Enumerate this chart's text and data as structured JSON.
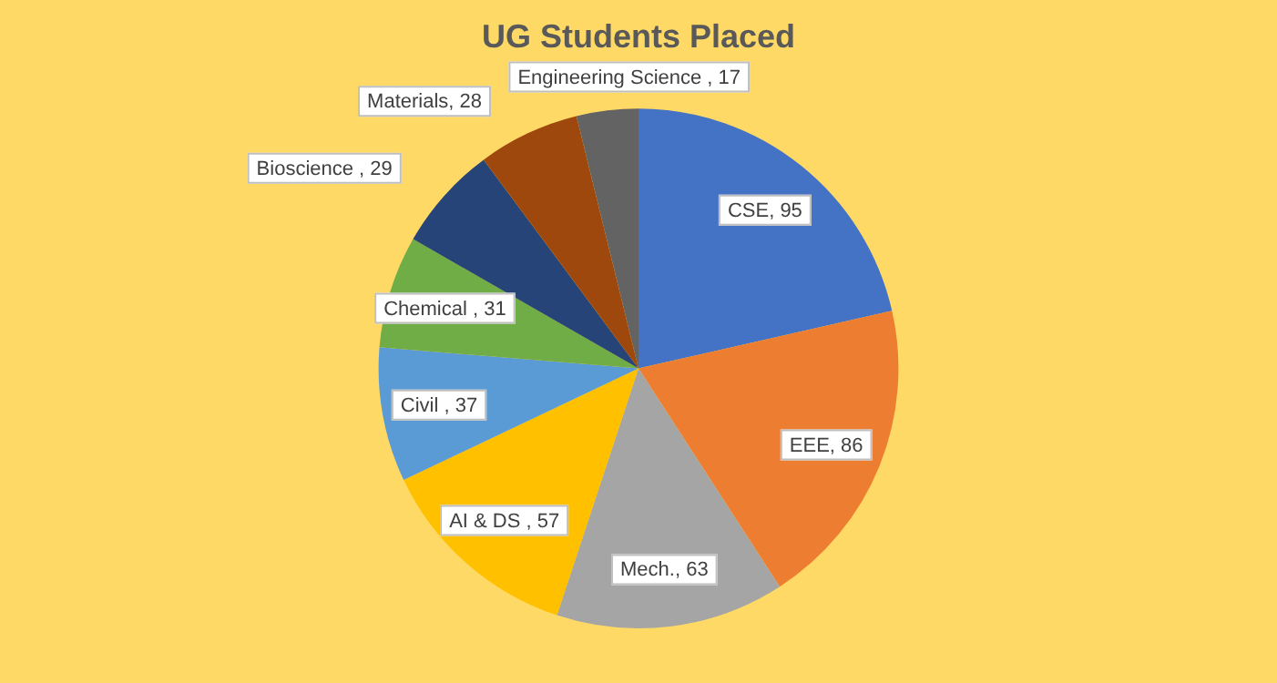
{
  "chart_data": {
    "type": "pie",
    "title": "UG Students Placed",
    "categories": [
      "CSE",
      "EEE",
      "Mech.",
      "AI & DS ",
      "Civil ",
      "Chemical ",
      "Bioscience ",
      "Materials",
      "Engineering Science "
    ],
    "values": [
      95,
      86,
      63,
      57,
      37,
      31,
      29,
      28,
      17
    ],
    "value_labels": [
      ", 95",
      ", 86",
      ", 63",
      ", 57",
      ", 37",
      ", 31",
      ", 29",
      ", 28",
      ", 17"
    ],
    "colors": [
      "#4472c4",
      "#ed7d31",
      "#a5a5a5",
      "#ffc000",
      "#5b9bd5",
      "#70ad47",
      "#264478",
      "#9e480e",
      "#636363"
    ],
    "legend": false
  }
}
